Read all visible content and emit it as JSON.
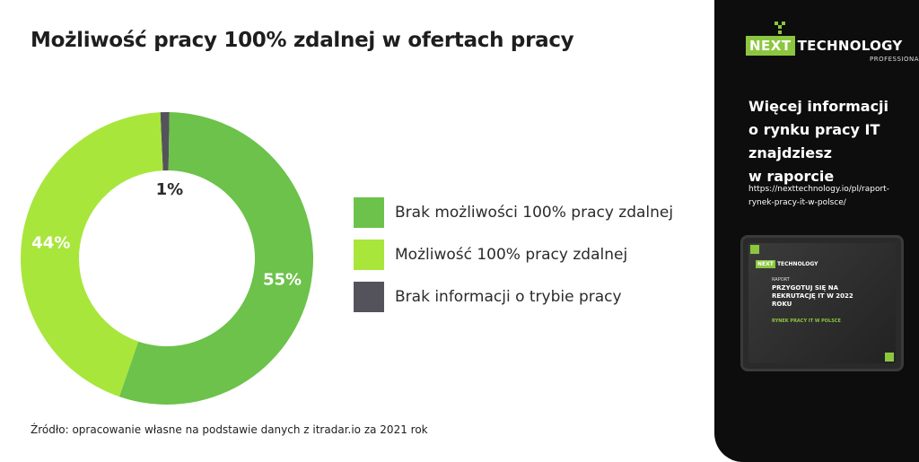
{
  "title": "Możliwość pracy 100% zdalnej w ofertach pracy",
  "chart_data": {
    "type": "pie",
    "donut": true,
    "series": [
      {
        "name": "Brak możliwości 100% pracy zdalnej",
        "value": 55,
        "label": "55%",
        "color": "#6cc24a"
      },
      {
        "name": "Możliwość 100% pracy zdalnej",
        "value": 44,
        "label": "44%",
        "color": "#a8e63c"
      },
      {
        "name": "Brak informacji o trybie pracy",
        "value": 1,
        "label": "1%",
        "color": "#54535c"
      }
    ],
    "legend_position": "right"
  },
  "source": "Źródło: opracowanie własne na podstawie danych z itradar.io za 2021 rok",
  "panel": {
    "logo_box": "NEXT",
    "logo_text": "TECHNOLOGY",
    "logo_sub": "PROFESSIONALS",
    "text": "Więcej informacji\no rynku pracy IT\nznajdziesz\nw raporcie",
    "link": "https://nexttechnology.io/pl/raport-rynek-pracy-it-w-polsce/",
    "tablet": {
      "logo": "NEXT",
      "logo_rest": "TECHNOLOGY",
      "raport": "RAPORT",
      "heading": "PRZYGOTUJ SIĘ NA REKRUTACJĘ IT W 2022 ROKU",
      "sub": "RYNEK PRACY IT W POLSCE"
    }
  }
}
